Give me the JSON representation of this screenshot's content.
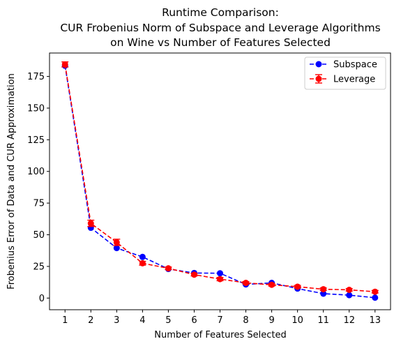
{
  "chart_data": {
    "type": "line",
    "title_lines": [
      "Runtime Comparison:",
      "CUR Frobenius Norm of Subspace and Leverage Algorithms",
      "on Wine vs Number of Features Selected"
    ],
    "xlabel": "Number of Features Selected",
    "ylabel": "Frobenius Error of Data and CUR Approximation",
    "x": [
      1,
      2,
      3,
      4,
      5,
      6,
      7,
      8,
      9,
      10,
      11,
      12,
      13
    ],
    "xlim": [
      0.4,
      13.6
    ],
    "ylim": [
      -9.2,
      193.5
    ],
    "yticks": [
      0,
      25,
      50,
      75,
      100,
      125,
      150,
      175
    ],
    "grid": false,
    "legend_position": "top-right",
    "series": [
      {
        "name": "Subspace",
        "color": "#0000ff",
        "linestyle": "dashed",
        "marker": "circle",
        "values": [
          183.5,
          55.5,
          39.5,
          32.5,
          23.0,
          19.8,
          19.6,
          10.8,
          12.0,
          7.5,
          3.5,
          2.3,
          0.3
        ],
        "errors": null
      },
      {
        "name": "Leverage",
        "color": "#ff0000",
        "linestyle": "dashed",
        "marker": "circle",
        "values": [
          184.5,
          59.0,
          44.0,
          27.5,
          23.5,
          18.5,
          15.0,
          12.0,
          10.5,
          9.0,
          7.0,
          6.5,
          5.0
        ],
        "errors": [
          2.0,
          2.5,
          2.5,
          1.5,
          1.0,
          1.0,
          1.3,
          1.0,
          1.0,
          1.0,
          1.0,
          1.0,
          1.0
        ]
      }
    ]
  }
}
